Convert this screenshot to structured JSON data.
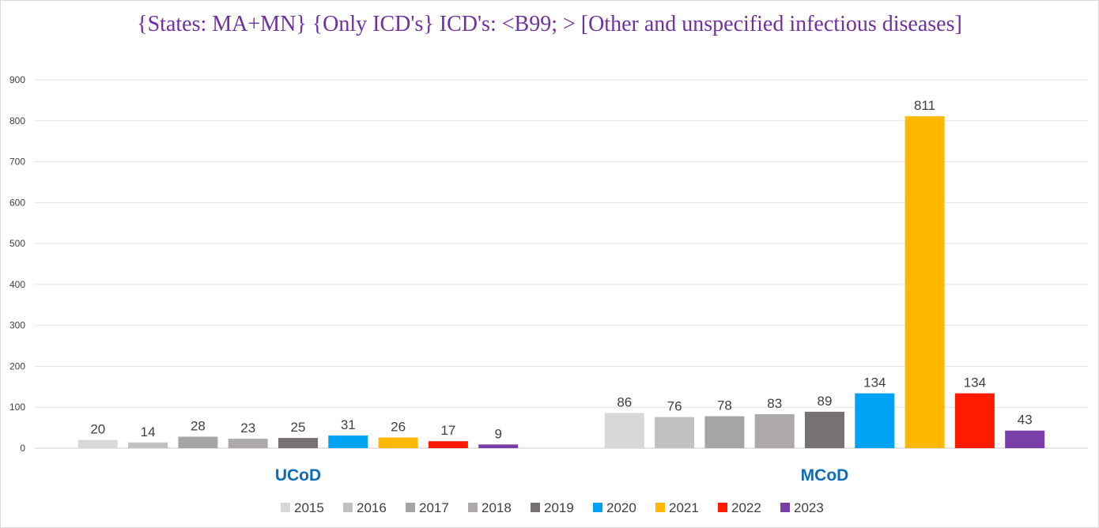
{
  "chart_data": {
    "type": "bar",
    "title": "{States: MA+MN}  {Only ICD's} ICD's: <B99; > [Other and unspecified infectious diseases]",
    "xlabel": "",
    "ylabel": "",
    "ylim": [
      0,
      900
    ],
    "yticks": [
      "0",
      "100",
      "200",
      "300",
      "400",
      "500",
      "600",
      "700",
      "800",
      "900"
    ],
    "categories": [
      "UCoD",
      "MCoD"
    ],
    "grid": true,
    "legend_position": "bottom",
    "series": [
      {
        "name": "2015",
        "color": "#d9d7d8",
        "values": [
          20,
          86
        ]
      },
      {
        "name": "2016",
        "color": "#c2c0c1",
        "values": [
          14,
          76
        ]
      },
      {
        "name": "2017",
        "color": "#a6a4a5",
        "values": [
          28,
          78
        ]
      },
      {
        "name": "2018",
        "color": "#aeaaab",
        "values": [
          23,
          83
        ]
      },
      {
        "name": "2019",
        "color": "#787173",
        "values": [
          25,
          89
        ]
      },
      {
        "name": "2020",
        "color": "#00a2f3",
        "values": [
          31,
          134
        ]
      },
      {
        "name": "2021",
        "color": "#ffb800",
        "values": [
          26,
          811
        ]
      },
      {
        "name": "2022",
        "color": "#ff1b00",
        "values": [
          17,
          134
        ]
      },
      {
        "name": "2023",
        "color": "#7a3ea8",
        "values": [
          9,
          43
        ]
      }
    ]
  }
}
